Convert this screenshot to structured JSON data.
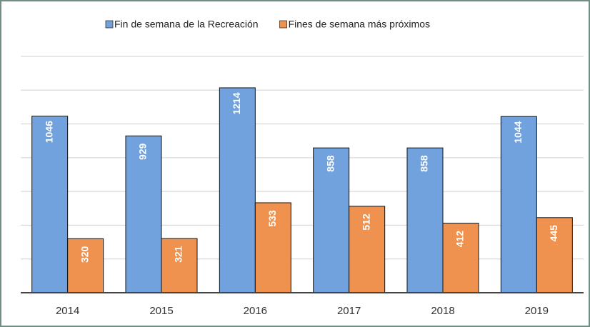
{
  "chart_data": {
    "type": "bar",
    "categories": [
      "2014",
      "2015",
      "2016",
      "2017",
      "2018",
      "2019"
    ],
    "series": [
      {
        "name": "Fin de semana de la Recreación",
        "color": "#71a2dd",
        "values": [
          1046,
          929,
          1214,
          858,
          858,
          1044
        ]
      },
      {
        "name": "Fines de semana más próximos",
        "color": "#f0924f",
        "values": [
          320,
          321,
          533,
          512,
          412,
          445
        ]
      }
    ],
    "ylim": [
      0,
      1400
    ],
    "yticks": [
      0,
      200,
      400,
      600,
      800,
      1000,
      1200,
      1400
    ],
    "grid": true,
    "legend": "top"
  }
}
